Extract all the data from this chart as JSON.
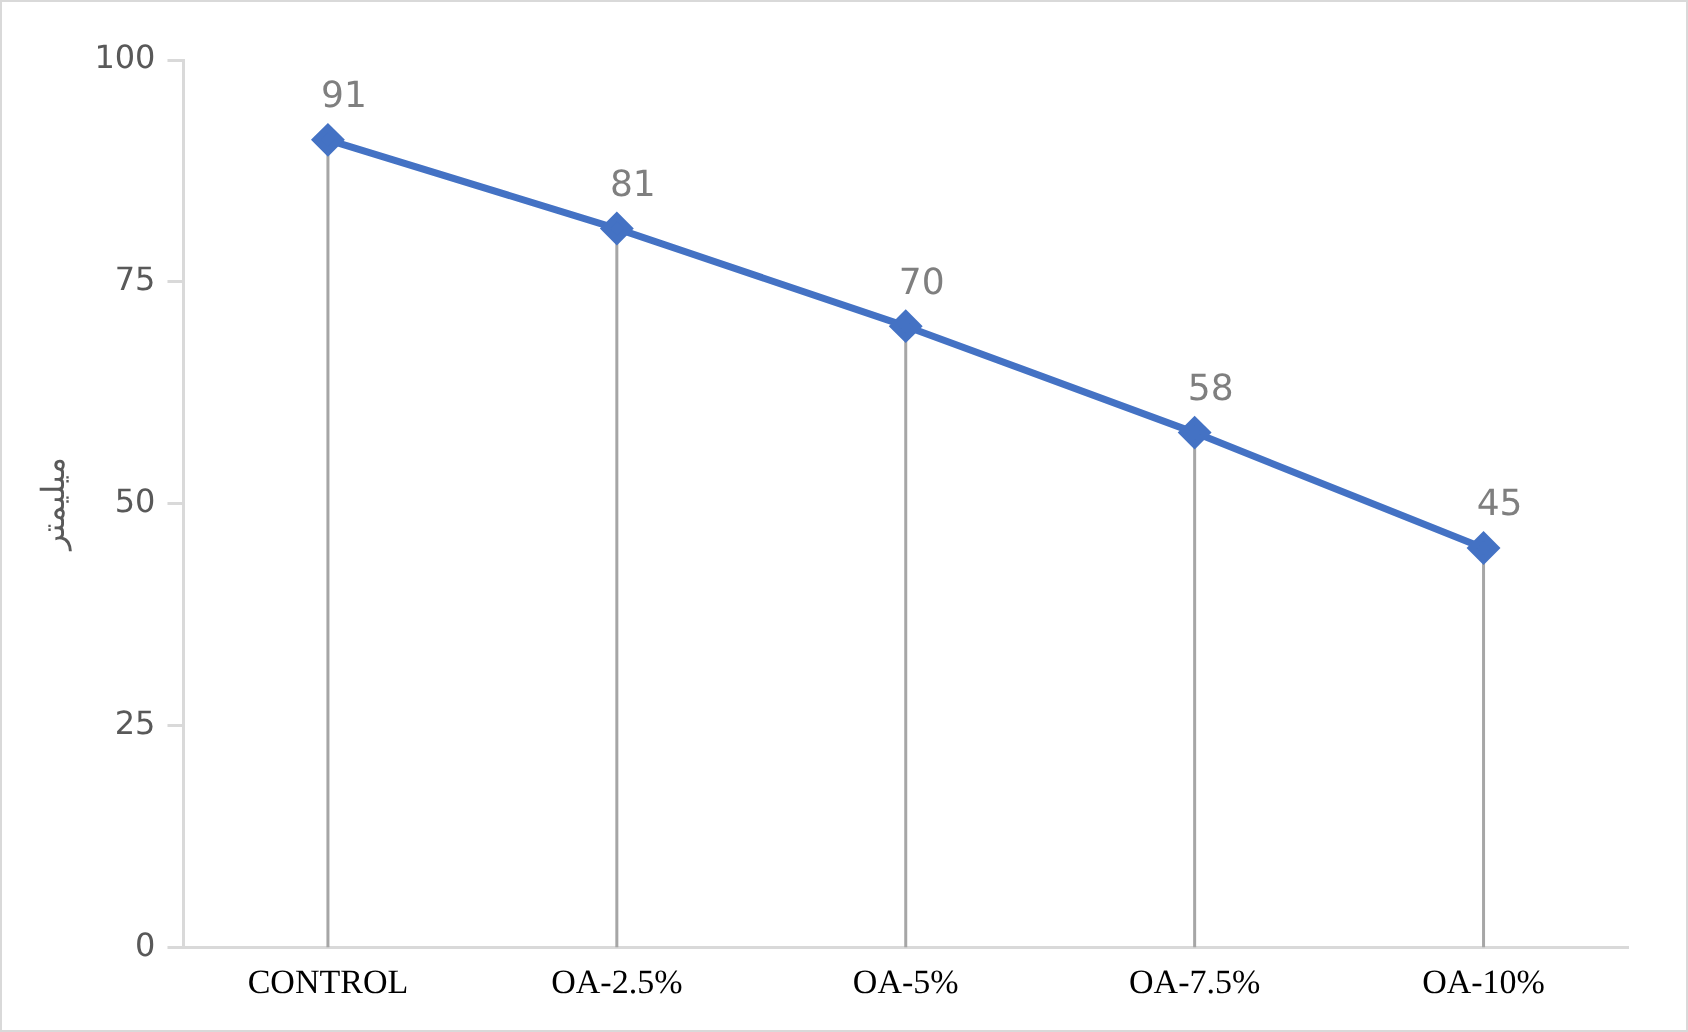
{
  "chart_data": {
    "type": "line",
    "ylabel": "میلیمتر",
    "categories": [
      "CONTROL",
      "OA-2.5%",
      "OA-5%",
      "OA-7.5%",
      "OA-10%"
    ],
    "series": [
      {
        "color": "#4472c4",
        "values": [
          91,
          81,
          70,
          58,
          45
        ]
      }
    ],
    "ylim": [
      0,
      100
    ],
    "yticks": [
      0,
      25,
      50,
      75,
      100
    ],
    "grid": "x",
    "legend": false,
    "marker": "diamond",
    "line_style": "solid",
    "data_labels": true
  }
}
